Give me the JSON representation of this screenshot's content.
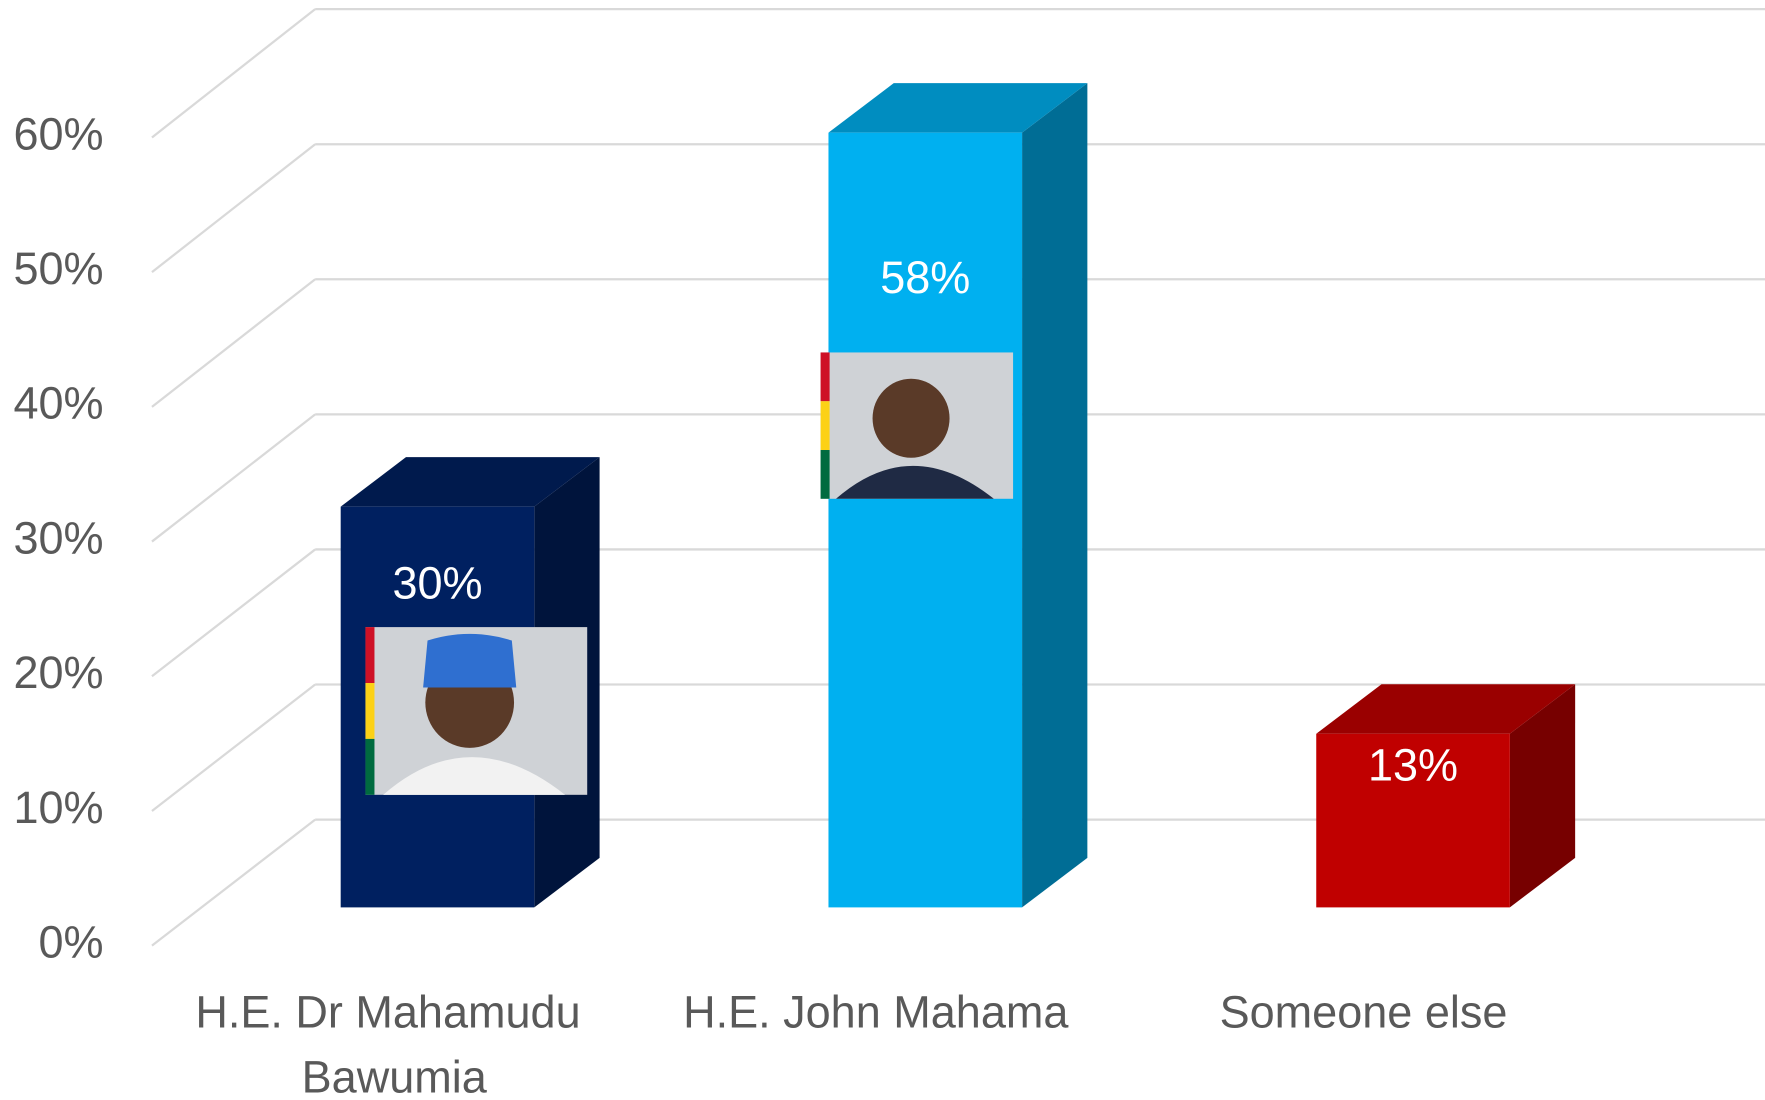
{
  "chart_data": {
    "type": "bar3d",
    "categories": [
      "H.E. Dr Mahamudu Bawumia",
      "H.E. John Mahama",
      "Someone else"
    ],
    "values": [
      30,
      58,
      13
    ],
    "value_labels": [
      "30%",
      "58%",
      "13%"
    ],
    "colors": [
      "#002060",
      "#00b0f0",
      "#c00000"
    ],
    "ylim": [
      0,
      60
    ],
    "yticks": [
      {
        "value": 0,
        "label": "0%"
      },
      {
        "value": 10,
        "label": "10%"
      },
      {
        "value": 20,
        "label": "20%"
      },
      {
        "value": 30,
        "label": "30%"
      },
      {
        "value": 40,
        "label": "40%"
      },
      {
        "value": 50,
        "label": "50%"
      },
      {
        "value": 60,
        "label": "60%"
      }
    ],
    "grid": true
  }
}
